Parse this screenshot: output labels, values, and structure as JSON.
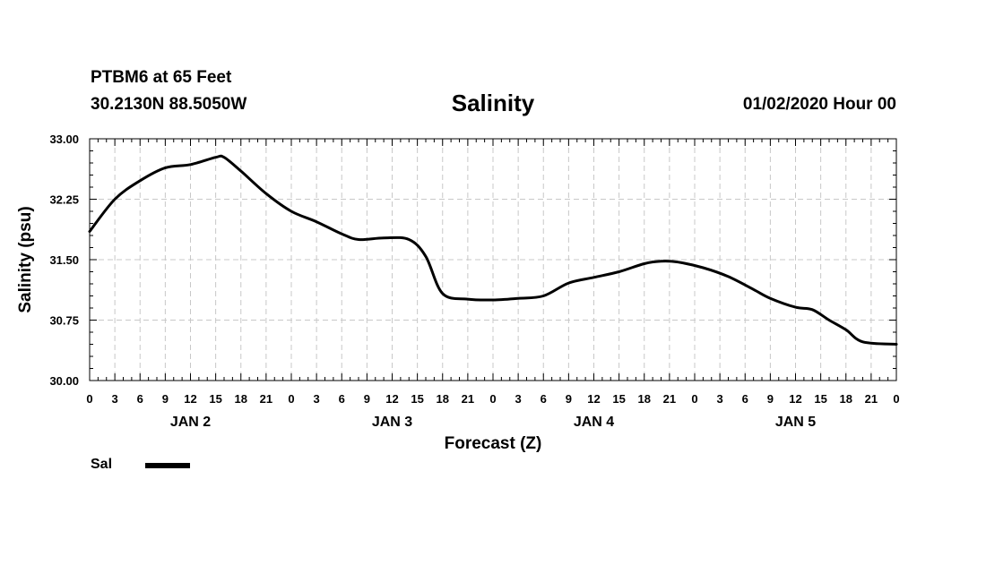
{
  "header": {
    "station": "PTBM6 at 65 Feet",
    "coords": "30.2130N 88.5050W",
    "issued": "01/02/2020 Hour 00"
  },
  "legend": {
    "label": "Sal"
  },
  "colors": {
    "line": "#000000",
    "grid": "#c8c8c8",
    "frame": "#000000"
  },
  "chart_data": {
    "type": "line",
    "title": "Salinity",
    "xlabel": "Forecast (Z)",
    "ylabel": "Salinity (psu)",
    "xlim": [
      0,
      96
    ],
    "ylim": [
      30.0,
      33.0
    ],
    "grid": true,
    "legend_position": "bottom-left",
    "yticks": [
      "30.00",
      "30.75",
      "31.50",
      "32.25",
      "33.00"
    ],
    "yticks_values": [
      30.0,
      30.75,
      31.5,
      32.25,
      33.0
    ],
    "xtick_labels": [
      "0",
      "3",
      "6",
      "9",
      "12",
      "15",
      "18",
      "21",
      "0",
      "3",
      "6",
      "9",
      "12",
      "15",
      "18",
      "21",
      "0",
      "3",
      "6",
      "9",
      "12",
      "15",
      "18",
      "21",
      "0",
      "3",
      "6",
      "9",
      "12",
      "15",
      "18",
      "21",
      "0"
    ],
    "day_labels": [
      {
        "label": "JAN 2",
        "x": 12
      },
      {
        "label": "JAN 3",
        "x": 36
      },
      {
        "label": "JAN 4",
        "x": 60
      },
      {
        "label": "JAN 5",
        "x": 84
      }
    ],
    "series": [
      {
        "name": "Sal",
        "x": [
          0,
          3,
          6,
          9,
          12,
          15,
          16,
          18,
          21,
          24,
          27,
          30,
          32,
          35,
          38,
          40,
          42,
          45,
          48,
          51,
          54,
          57,
          60,
          63,
          66,
          68,
          70,
          73,
          76,
          79,
          81,
          84,
          86,
          88,
          90,
          92,
          96
        ],
        "values": [
          31.85,
          32.25,
          32.48,
          32.64,
          32.68,
          32.77,
          32.77,
          32.6,
          32.32,
          32.1,
          31.97,
          31.82,
          31.75,
          31.77,
          31.75,
          31.54,
          31.08,
          31.01,
          31.0,
          31.02,
          31.05,
          31.21,
          31.28,
          31.35,
          31.45,
          31.48,
          31.47,
          31.4,
          31.29,
          31.13,
          31.02,
          30.91,
          30.88,
          30.75,
          30.63,
          30.48,
          30.45
        ]
      }
    ]
  }
}
